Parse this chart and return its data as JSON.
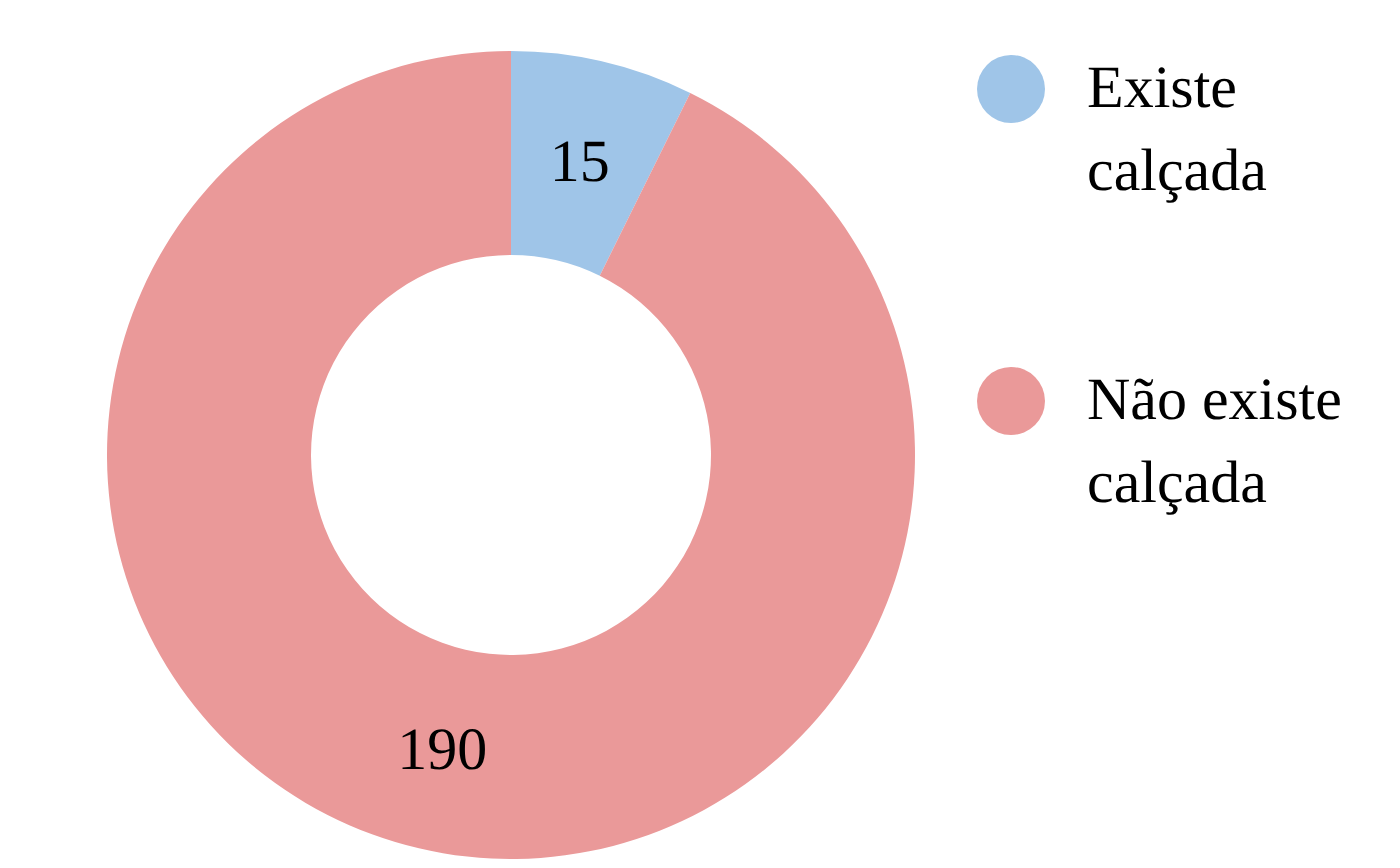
{
  "chart_data": {
    "type": "donut",
    "categories": [
      "Existe calçada",
      "Não existe calçada"
    ],
    "values": [
      15,
      190
    ],
    "colors": [
      "#9fc5e8",
      "#ea9999"
    ],
    "data_labels": true,
    "legend": "right"
  }
}
